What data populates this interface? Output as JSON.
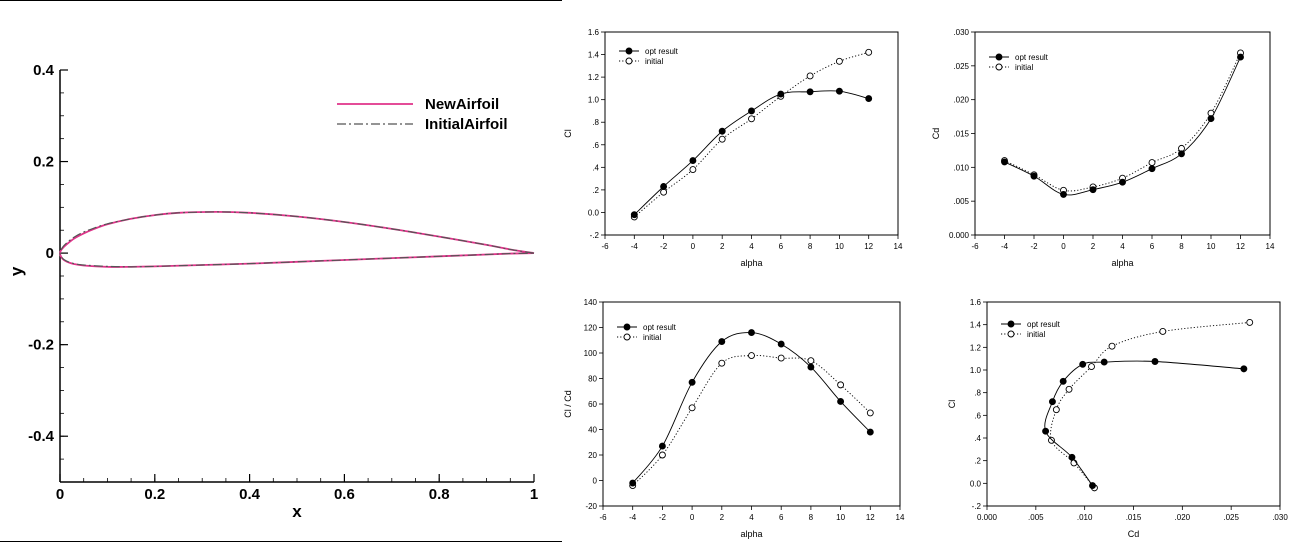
{
  "chart_data": [
    {
      "id": "airfoil",
      "type": "line",
      "xlabel": "x",
      "ylabel": "y",
      "xlim": [
        0,
        1
      ],
      "ylim": [
        -0.5,
        0.4
      ],
      "xticks": [
        0,
        0.2,
        0.4,
        0.6,
        0.8,
        1
      ],
      "xtick_labels": [
        "0",
        "0.2",
        "0.4",
        "0.6",
        "0.8",
        "1"
      ],
      "yticks": [
        -0.4,
        -0.2,
        0,
        0.2,
        0.4
      ],
      "ytick_labels": [
        "-0.4",
        "-0.2",
        "0",
        "0.2",
        "0.4"
      ],
      "legend_position": "top-right",
      "series": [
        {
          "name": "NewAirfoil",
          "color": "#e0338a",
          "style": "solid",
          "x": [
            1.0,
            0.95,
            0.9,
            0.8,
            0.7,
            0.6,
            0.5,
            0.4,
            0.33,
            0.25,
            0.2,
            0.15,
            0.1,
            0.07,
            0.05,
            0.03,
            0.015,
            0.005,
            0.0,
            0.005,
            0.015,
            0.03,
            0.05,
            0.1,
            0.15,
            0.2,
            0.3,
            0.4,
            0.5,
            0.6,
            0.7,
            0.8,
            0.9,
            0.95,
            1.0
          ],
          "y": [
            0.0,
            0.008,
            0.018,
            0.036,
            0.053,
            0.068,
            0.08,
            0.088,
            0.09,
            0.088,
            0.083,
            0.075,
            0.063,
            0.052,
            0.043,
            0.032,
            0.02,
            0.01,
            0.0,
            -0.012,
            -0.019,
            -0.024,
            -0.027,
            -0.03,
            -0.03,
            -0.029,
            -0.026,
            -0.023,
            -0.019,
            -0.015,
            -0.011,
            -0.007,
            -0.003,
            -0.001,
            0.0
          ]
        },
        {
          "name": "InitialAirfoil",
          "color": "#555555",
          "style": "dashdot",
          "x": [
            1.0,
            0.95,
            0.9,
            0.8,
            0.7,
            0.6,
            0.5,
            0.4,
            0.33,
            0.25,
            0.2,
            0.15,
            0.1,
            0.07,
            0.05,
            0.03,
            0.015,
            0.005,
            0.0,
            0.005,
            0.015,
            0.03,
            0.05,
            0.1,
            0.15,
            0.2,
            0.3,
            0.4,
            0.5,
            0.6,
            0.7,
            0.8,
            0.9,
            0.95,
            1.0
          ],
          "y": [
            0.0,
            0.008,
            0.018,
            0.036,
            0.053,
            0.068,
            0.08,
            0.088,
            0.09,
            0.088,
            0.083,
            0.075,
            0.064,
            0.054,
            0.046,
            0.035,
            0.023,
            0.012,
            0.0,
            -0.011,
            -0.018,
            -0.023,
            -0.026,
            -0.029,
            -0.03,
            -0.029,
            -0.026,
            -0.023,
            -0.019,
            -0.015,
            -0.011,
            -0.007,
            -0.003,
            -0.001,
            0.0
          ]
        }
      ]
    },
    {
      "id": "cl-alpha",
      "type": "line",
      "xlabel": "alpha",
      "ylabel": "Cl",
      "xlim": [
        -6,
        14
      ],
      "ylim": [
        -0.2,
        1.6
      ],
      "xticks": [
        -6,
        -4,
        -2,
        0,
        2,
        4,
        6,
        8,
        10,
        12,
        14
      ],
      "xtick_labels": [
        "-6",
        "-4",
        "-2",
        "0",
        "2",
        "4",
        "6",
        "8",
        "10",
        "12",
        "14"
      ],
      "yticks": [
        -0.2,
        0,
        0.2,
        0.4,
        0.6,
        0.8,
        1.0,
        1.2,
        1.4,
        1.6
      ],
      "ytick_labels": [
        "-.2",
        "0.0",
        ".2",
        ".4",
        ".6",
        ".8",
        "1.0",
        "1.2",
        "1.4",
        "1.6"
      ],
      "legend_position": "top-left",
      "series": [
        {
          "name": "opt result",
          "marker": "filled",
          "style": "solid",
          "x": [
            -4,
            -2,
            0,
            2,
            4,
            6,
            8,
            10,
            12
          ],
          "y": [
            -0.02,
            0.23,
            0.46,
            0.72,
            0.9,
            1.05,
            1.07,
            1.075,
            1.01
          ]
        },
        {
          "name": "initial",
          "marker": "open",
          "style": "dotted",
          "x": [
            -4,
            -2,
            0,
            2,
            4,
            6,
            8,
            10,
            12
          ],
          "y": [
            -0.04,
            0.18,
            0.38,
            0.65,
            0.83,
            1.03,
            1.21,
            1.34,
            1.42
          ]
        }
      ]
    },
    {
      "id": "cd-alpha",
      "type": "line",
      "xlabel": "alpha",
      "ylabel": "Cd",
      "xlim": [
        -6,
        14
      ],
      "ylim": [
        0,
        0.03
      ],
      "xticks": [
        -6,
        -4,
        -2,
        0,
        2,
        4,
        6,
        8,
        10,
        12,
        14
      ],
      "xtick_labels": [
        "-6",
        "-4",
        "-2",
        "0",
        "2",
        "4",
        "6",
        "8",
        "10",
        "12",
        "14"
      ],
      "yticks": [
        0,
        0.005,
        0.01,
        0.015,
        0.02,
        0.025,
        0.03
      ],
      "ytick_labels": [
        "0.000",
        ".005",
        ".010",
        ".015",
        ".020",
        ".025",
        ".030"
      ],
      "legend_position": "top-left",
      "series": [
        {
          "name": "opt result",
          "marker": "filled",
          "style": "solid",
          "x": [
            -4,
            -2,
            0,
            2,
            4,
            6,
            8,
            10,
            12
          ],
          "y": [
            0.0108,
            0.0087,
            0.006,
            0.0067,
            0.0078,
            0.0098,
            0.012,
            0.0172,
            0.0263
          ]
        },
        {
          "name": "initial",
          "marker": "open",
          "style": "dotted",
          "x": [
            -4,
            -2,
            0,
            2,
            4,
            6,
            8,
            10,
            12
          ],
          "y": [
            0.011,
            0.0089,
            0.0066,
            0.0071,
            0.0084,
            0.0107,
            0.0128,
            0.018,
            0.0269
          ]
        }
      ]
    },
    {
      "id": "clcd-alpha",
      "type": "line",
      "xlabel": "alpha",
      "ylabel": "Cl / Cd",
      "xlim": [
        -6,
        14
      ],
      "ylim": [
        -20,
        140
      ],
      "xticks": [
        -6,
        -4,
        -2,
        0,
        2,
        4,
        6,
        8,
        10,
        12,
        14
      ],
      "xtick_labels": [
        "-6",
        "-4",
        "-2",
        "0",
        "2",
        "4",
        "6",
        "8",
        "10",
        "12",
        "14"
      ],
      "yticks": [
        -20,
        0,
        20,
        40,
        60,
        80,
        100,
        120,
        140
      ],
      "ytick_labels": [
        "-20",
        "0",
        "20",
        "40",
        "60",
        "80",
        "100",
        "120",
        "140"
      ],
      "legend_position": "top-left",
      "series": [
        {
          "name": "opt result",
          "marker": "filled",
          "style": "solid",
          "x": [
            -4,
            -2,
            0,
            2,
            4,
            6,
            8,
            10,
            12
          ],
          "y": [
            -2,
            27,
            77,
            109,
            116,
            107,
            89,
            62,
            38
          ]
        },
        {
          "name": "initial",
          "marker": "open",
          "style": "dotted",
          "x": [
            -4,
            -2,
            0,
            2,
            4,
            6,
            8,
            10,
            12
          ],
          "y": [
            -4,
            20,
            57,
            92,
            98,
            96,
            94,
            75,
            53
          ]
        }
      ]
    },
    {
      "id": "cl-cd",
      "type": "line",
      "xlabel": "Cd",
      "ylabel": "Cl",
      "xlim": [
        0,
        0.03
      ],
      "ylim": [
        -0.2,
        1.6
      ],
      "xticks": [
        0,
        0.005,
        0.01,
        0.015,
        0.02,
        0.025,
        0.03
      ],
      "xtick_labels": [
        "0.000",
        ".005",
        ".010",
        ".015",
        ".020",
        ".025",
        ".030"
      ],
      "yticks": [
        -0.2,
        0,
        0.2,
        0.4,
        0.6,
        0.8,
        1.0,
        1.2,
        1.4,
        1.6
      ],
      "ytick_labels": [
        "-.2",
        "0.0",
        ".2",
        ".4",
        ".6",
        ".8",
        "1.0",
        "1.2",
        "1.4",
        "1.6"
      ],
      "legend_position": "top-left",
      "series": [
        {
          "name": "opt result",
          "marker": "filled",
          "style": "solid",
          "x": [
            0.0108,
            0.0087,
            0.006,
            0.0067,
            0.0078,
            0.0098,
            0.012,
            0.0172,
            0.0263
          ],
          "y": [
            -0.02,
            0.23,
            0.46,
            0.72,
            0.9,
            1.05,
            1.07,
            1.075,
            1.01
          ]
        },
        {
          "name": "initial",
          "marker": "open",
          "style": "dotted",
          "x": [
            0.011,
            0.0089,
            0.0066,
            0.0071,
            0.0084,
            0.0107,
            0.0128,
            0.018,
            0.0269
          ],
          "y": [
            -0.04,
            0.18,
            0.38,
            0.65,
            0.83,
            1.03,
            1.21,
            1.34,
            1.42
          ]
        }
      ]
    }
  ]
}
